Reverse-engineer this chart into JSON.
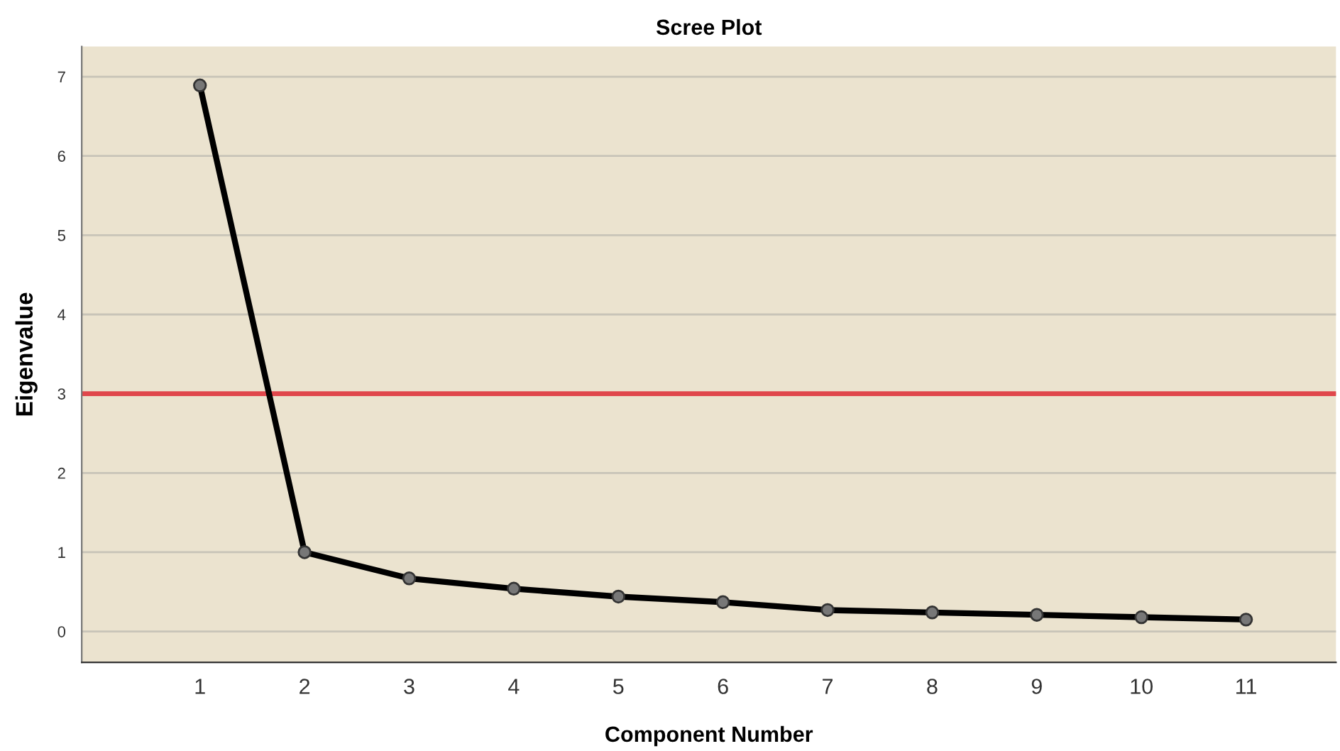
{
  "chart_data": {
    "type": "line",
    "title": "Scree Plot",
    "xlabel": "Component Number",
    "ylabel": "Eigenvalue",
    "categories": [
      "1",
      "2",
      "3",
      "4",
      "5",
      "6",
      "7",
      "8",
      "9",
      "10",
      "11"
    ],
    "series": [
      {
        "color": "#000000",
        "values": [
          6.89,
          1.0,
          0.67,
          0.54,
          0.44,
          0.37,
          0.27,
          0.24,
          0.21,
          0.18,
          0.15
        ]
      }
    ],
    "ylim": [
      -0.39,
      7.38
    ],
    "yticks": [
      0,
      1,
      2,
      3,
      4,
      5,
      6,
      7
    ],
    "ref_lines": [
      {
        "axis": "y",
        "value": 3,
        "color": "#e0474c"
      }
    ],
    "grid": "y",
    "marker": "circle",
    "line_style": "solid"
  }
}
